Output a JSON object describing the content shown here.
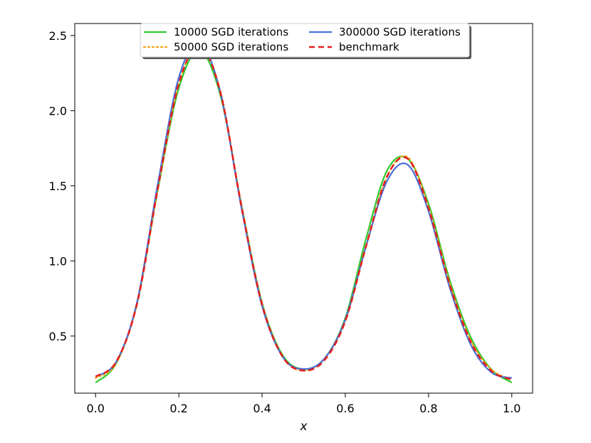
{
  "chart_data": {
    "type": "line",
    "title": "",
    "xlabel": "x",
    "ylabel": "",
    "xlim": [
      -0.05,
      1.05
    ],
    "ylim": [
      0.12,
      2.58
    ],
    "x_ticks": [
      0.0,
      0.2,
      0.4,
      0.6,
      0.8,
      1.0
    ],
    "x_tick_labels": [
      "0.0",
      "0.2",
      "0.4",
      "0.6",
      "0.8",
      "1.0"
    ],
    "y_ticks": [
      0.5,
      1.0,
      1.5,
      2.0,
      2.5
    ],
    "y_tick_labels": [
      "0.5",
      "1.0",
      "1.5",
      "2.0",
      "2.5"
    ],
    "grid": false,
    "legend_position": "top-center",
    "legend_columns": 2,
    "series": [
      {
        "name": "10000 SGD iterations",
        "color": "#2fca2f",
        "style": "solid",
        "x": [
          0.0,
          0.05,
          0.1,
          0.15,
          0.2,
          0.25,
          0.3,
          0.35,
          0.4,
          0.45,
          0.5,
          0.55,
          0.6,
          0.65,
          0.7,
          0.75,
          0.8,
          0.85,
          0.9,
          0.95,
          1.0
        ],
        "values": [
          0.19,
          0.32,
          0.72,
          1.48,
          2.15,
          2.4,
          2.1,
          1.38,
          0.72,
          0.37,
          0.28,
          0.35,
          0.62,
          1.15,
          1.6,
          1.68,
          1.38,
          0.88,
          0.5,
          0.28,
          0.19
        ]
      },
      {
        "name": "50000 SGD iterations",
        "color": "#f2a20f",
        "style": "dotted",
        "x": [
          0.0,
          0.05,
          0.1,
          0.15,
          0.2,
          0.25,
          0.3,
          0.35,
          0.4,
          0.45,
          0.5,
          0.55,
          0.6,
          0.65,
          0.7,
          0.75,
          0.8,
          0.85,
          0.9,
          0.95,
          1.0
        ],
        "values": [
          0.22,
          0.32,
          0.72,
          1.48,
          2.18,
          2.43,
          2.13,
          1.38,
          0.71,
          0.36,
          0.27,
          0.35,
          0.6,
          1.1,
          1.56,
          1.69,
          1.36,
          0.86,
          0.48,
          0.28,
          0.21
        ]
      },
      {
        "name": "300000 SGD iterations",
        "color": "#4a6fd8",
        "style": "solid",
        "x": [
          0.0,
          0.05,
          0.1,
          0.15,
          0.2,
          0.25,
          0.3,
          0.35,
          0.4,
          0.45,
          0.5,
          0.55,
          0.6,
          0.65,
          0.7,
          0.75,
          0.8,
          0.85,
          0.9,
          0.95,
          1.0
        ],
        "values": [
          0.23,
          0.33,
          0.73,
          1.52,
          2.22,
          2.45,
          2.12,
          1.36,
          0.7,
          0.36,
          0.28,
          0.35,
          0.61,
          1.1,
          1.53,
          1.64,
          1.33,
          0.83,
          0.45,
          0.26,
          0.22
        ]
      },
      {
        "name": "benchmark",
        "color": "#e61e1e",
        "style": "dashed",
        "x": [
          0.0,
          0.05,
          0.1,
          0.15,
          0.2,
          0.25,
          0.3,
          0.35,
          0.4,
          0.45,
          0.5,
          0.55,
          0.6,
          0.65,
          0.7,
          0.75,
          0.8,
          0.85,
          0.9,
          0.95,
          1.0
        ],
        "values": [
          0.23,
          0.33,
          0.72,
          1.49,
          2.18,
          2.43,
          2.12,
          1.37,
          0.71,
          0.36,
          0.27,
          0.34,
          0.6,
          1.1,
          1.56,
          1.68,
          1.35,
          0.85,
          0.47,
          0.27,
          0.21
        ]
      }
    ]
  }
}
